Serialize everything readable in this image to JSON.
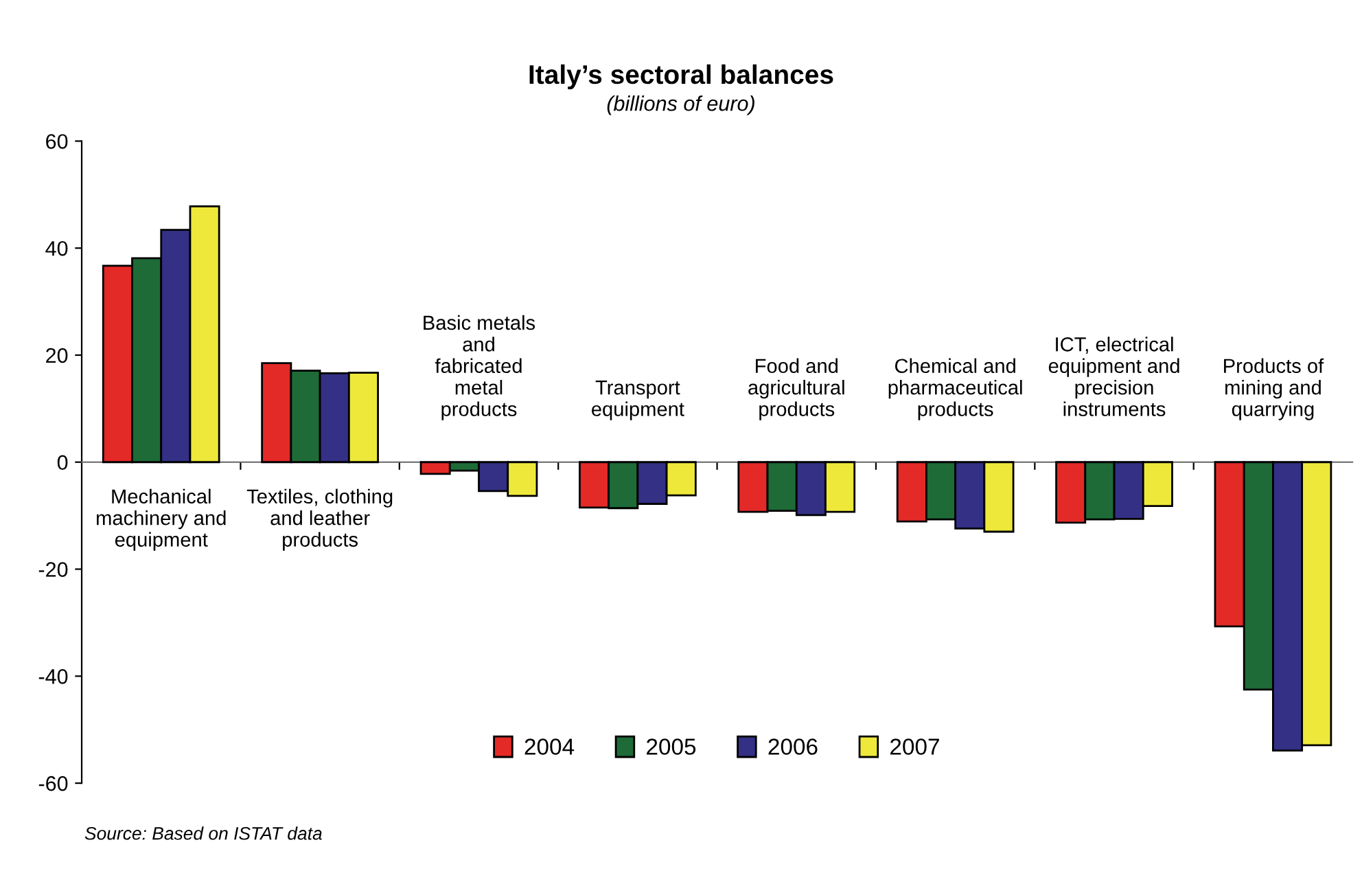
{
  "chart_data": {
    "type": "bar",
    "title": "Italy’s sectoral balances",
    "subtitle": "(billions of euro)",
    "categories": [
      "Mechanical\nmachinery and\nequipment",
      "Textiles, clothing\nand leather\nproducts",
      "Basic metals\nand\nfabricated\nmetal\nproducts",
      "Transport\nequipment",
      "Food and\nagricultural\nproducts",
      "Chemical and\npharmaceutical\nproducts",
      "ICT, electrical\nequipment and\nprecision\ninstruments",
      "Products of\nmining and\nquarrying"
    ],
    "series": [
      {
        "name": "2004",
        "color": "#e32a27",
        "values": [
          36.7,
          18.5,
          -2.2,
          -8.5,
          -9.3,
          -11.1,
          -11.3,
          -30.7
        ]
      },
      {
        "name": "2005",
        "color": "#1e6b38",
        "values": [
          38.1,
          17.1,
          -1.6,
          -8.6,
          -9.1,
          -10.7,
          -10.7,
          -42.5
        ]
      },
      {
        "name": "2006",
        "color": "#333085",
        "values": [
          43.4,
          16.6,
          -5.4,
          -7.8,
          -9.9,
          -12.4,
          -10.6,
          -53.9
        ]
      },
      {
        "name": "2007",
        "color": "#eee83b",
        "values": [
          47.8,
          16.7,
          -6.3,
          -6.2,
          -9.3,
          -13.0,
          -8.2,
          -52.9
        ]
      }
    ],
    "ylim": [
      -60,
      60
    ],
    "yticks": [
      -60,
      -40,
      -20,
      0,
      20,
      40,
      60
    ],
    "grid": false,
    "legend": "bottom",
    "annotations": [
      "Source: Based on ISTAT data"
    ]
  }
}
